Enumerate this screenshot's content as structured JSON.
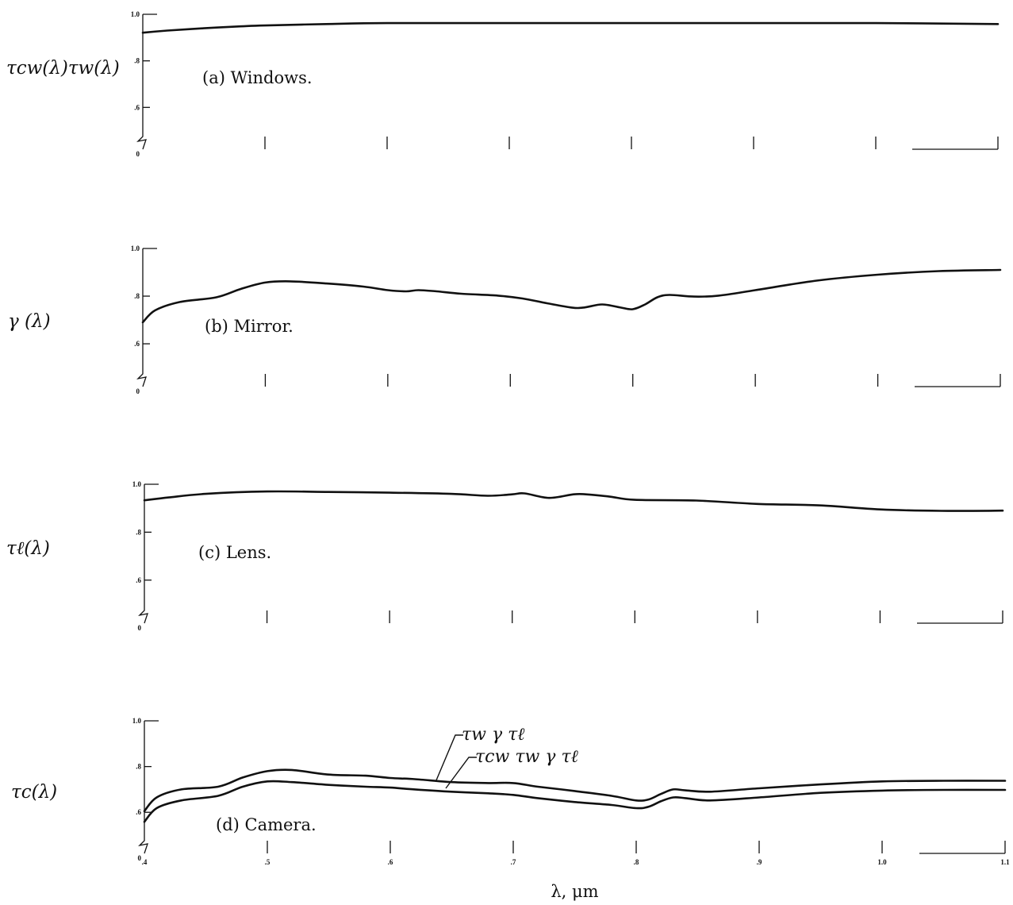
{
  "chart_data": [
    {
      "type": "line",
      "panel_label": "(a) Windows.",
      "ylabel": "τcw(λ)τw(λ)",
      "y_ticks": [
        "1.0",
        ".8",
        ".6",
        "0"
      ],
      "ylim": [
        0,
        1.0
      ],
      "xlim": [
        0.4,
        1.1
      ],
      "x_tick_values": [
        0.5,
        0.6,
        0.7,
        0.8,
        0.9,
        1.0,
        1.1
      ],
      "series": [
        {
          "x": [
            0.4,
            0.42,
            0.45,
            0.48,
            0.5,
            0.55,
            0.6,
            0.7,
            0.8,
            0.9,
            1.0,
            1.1
          ],
          "y": [
            0.921,
            0.93,
            0.94,
            0.948,
            0.952,
            0.958,
            0.962,
            0.962,
            0.962,
            0.962,
            0.962,
            0.958
          ]
        }
      ]
    },
    {
      "type": "line",
      "panel_label": "(b) Mirror.",
      "ylabel": "γ (λ)",
      "y_ticks": [
        "1.0",
        ".8",
        ".6",
        "0"
      ],
      "ylim": [
        0,
        1.0
      ],
      "xlim": [
        0.4,
        1.1
      ],
      "x_tick_values": [
        0.5,
        0.6,
        0.7,
        0.8,
        0.9,
        1.0,
        1.1
      ],
      "series": [
        {
          "x": [
            0.4,
            0.41,
            0.43,
            0.46,
            0.48,
            0.5,
            0.52,
            0.55,
            0.58,
            0.6,
            0.615,
            0.625,
            0.64,
            0.66,
            0.69,
            0.71,
            0.73,
            0.75,
            0.76,
            0.775,
            0.79,
            0.8,
            0.81,
            0.82,
            0.83,
            0.85,
            0.87,
            0.9,
            0.95,
            1.0,
            1.05,
            1.1
          ],
          "y": [
            0.69,
            0.74,
            0.775,
            0.795,
            0.83,
            0.857,
            0.862,
            0.853,
            0.84,
            0.825,
            0.82,
            0.825,
            0.82,
            0.81,
            0.802,
            0.79,
            0.77,
            0.752,
            0.752,
            0.765,
            0.752,
            0.745,
            0.765,
            0.795,
            0.805,
            0.798,
            0.802,
            0.825,
            0.865,
            0.89,
            0.905,
            0.91
          ]
        }
      ]
    },
    {
      "type": "line",
      "panel_label": "(c) Lens.",
      "ylabel": "τℓ(λ)",
      "y_ticks": [
        "1.0",
        ".8",
        ".6",
        "0"
      ],
      "ylim": [
        0,
        1.0
      ],
      "xlim": [
        0.4,
        1.1
      ],
      "x_tick_values": [
        0.5,
        0.6,
        0.7,
        0.8,
        0.9,
        1.0,
        1.1
      ],
      "series": [
        {
          "x": [
            0.4,
            0.42,
            0.45,
            0.5,
            0.55,
            0.6,
            0.65,
            0.68,
            0.7,
            0.71,
            0.73,
            0.75,
            0.76,
            0.78,
            0.8,
            0.85,
            0.9,
            0.95,
            1.0,
            1.05,
            1.1
          ],
          "y": [
            0.933,
            0.945,
            0.96,
            0.97,
            0.968,
            0.965,
            0.96,
            0.952,
            0.958,
            0.962,
            0.943,
            0.958,
            0.958,
            0.948,
            0.935,
            0.932,
            0.918,
            0.912,
            0.895,
            0.889,
            0.89
          ]
        }
      ]
    },
    {
      "type": "line",
      "panel_label": "(d) Camera.",
      "ylabel": "τc(λ)",
      "xlabel": "λ, μm",
      "y_ticks": [
        "1.0",
        ".8",
        ".6",
        "0"
      ],
      "x_ticks": [
        ".4",
        ".5",
        ".6",
        ".7",
        ".8",
        ".9",
        "1.0",
        "1.1"
      ],
      "x_tick_values": [
        0.4,
        0.5,
        0.6,
        0.7,
        0.8,
        0.9,
        1.0,
        1.1
      ],
      "ylim": [
        0,
        1.0
      ],
      "xlim": [
        0.4,
        1.1
      ],
      "series": [
        {
          "name": "τw γ τℓ",
          "x": [
            0.4,
            0.41,
            0.43,
            0.46,
            0.48,
            0.5,
            0.52,
            0.55,
            0.58,
            0.6,
            0.62,
            0.65,
            0.68,
            0.7,
            0.72,
            0.75,
            0.78,
            0.8,
            0.81,
            0.82,
            0.83,
            0.84,
            0.86,
            0.9,
            0.95,
            1.0,
            1.05,
            1.1
          ],
          "y": [
            0.605,
            0.665,
            0.7,
            0.712,
            0.752,
            0.78,
            0.785,
            0.765,
            0.76,
            0.75,
            0.745,
            0.732,
            0.728,
            0.728,
            0.712,
            0.693,
            0.672,
            0.652,
            0.656,
            0.68,
            0.7,
            0.696,
            0.69,
            0.705,
            0.722,
            0.735,
            0.738,
            0.738
          ]
        },
        {
          "name": "τcw τw γ τℓ",
          "x": [
            0.4,
            0.41,
            0.43,
            0.46,
            0.48,
            0.5,
            0.52,
            0.55,
            0.58,
            0.6,
            0.62,
            0.65,
            0.68,
            0.7,
            0.72,
            0.75,
            0.78,
            0.8,
            0.81,
            0.82,
            0.83,
            0.84,
            0.86,
            0.9,
            0.95,
            1.0,
            1.05,
            1.1
          ],
          "y": [
            0.558,
            0.618,
            0.652,
            0.672,
            0.712,
            0.735,
            0.732,
            0.72,
            0.712,
            0.708,
            0.7,
            0.69,
            0.683,
            0.676,
            0.662,
            0.645,
            0.632,
            0.618,
            0.624,
            0.648,
            0.665,
            0.662,
            0.652,
            0.665,
            0.685,
            0.695,
            0.698,
            0.698
          ]
        }
      ]
    }
  ]
}
